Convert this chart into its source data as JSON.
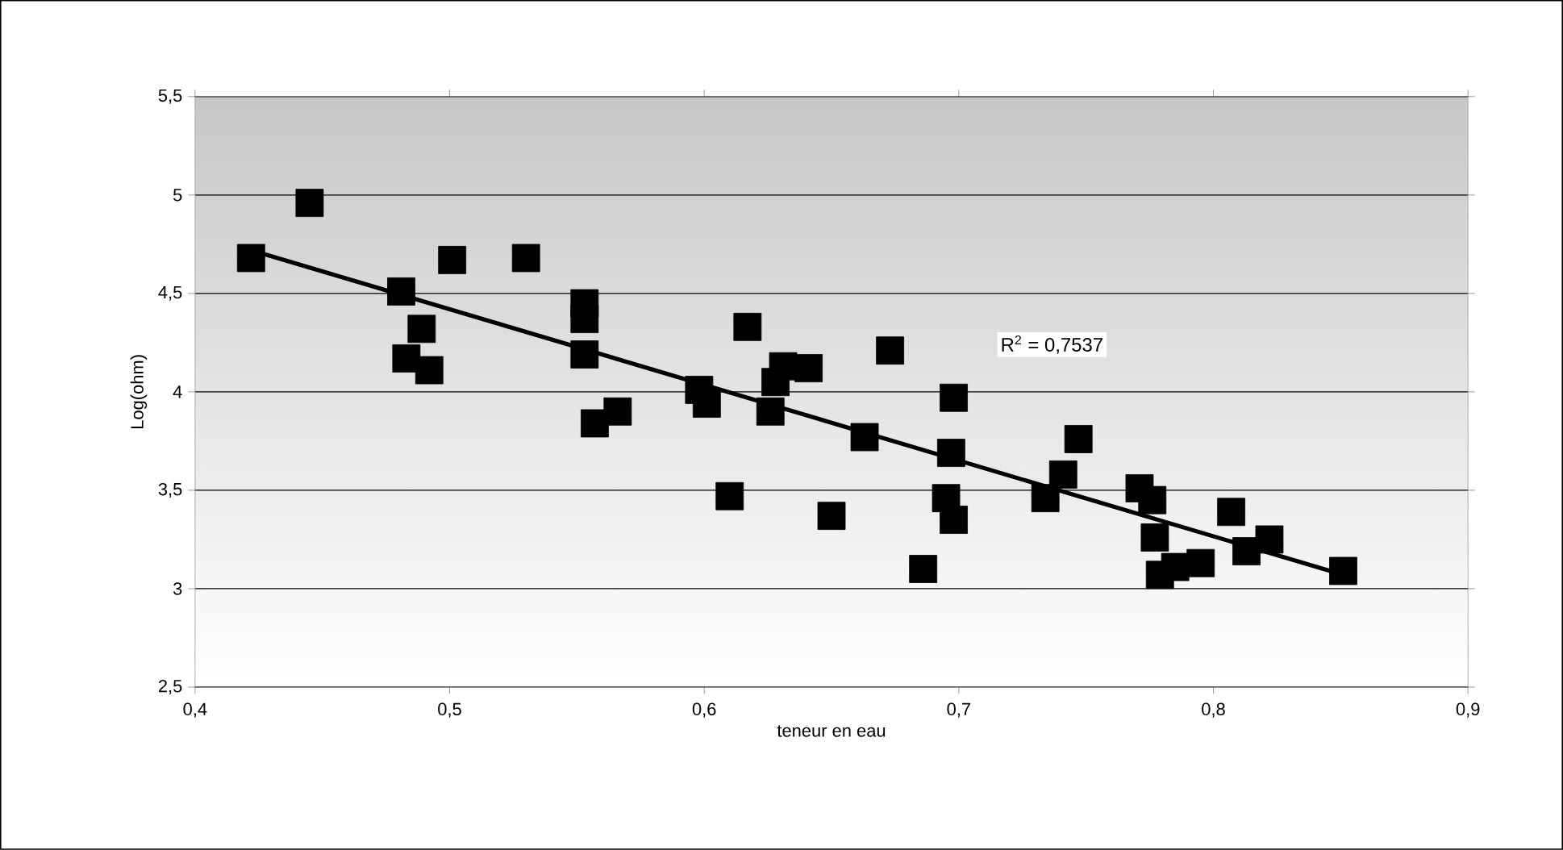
{
  "chart_data": {
    "type": "scatter",
    "xlabel": "teneur en eau",
    "ylabel": "Log(ohm)",
    "xlim": [
      0.4,
      0.9
    ],
    "ylim": [
      2.5,
      5.5
    ],
    "xticks": [
      {
        "value": 0.4,
        "label": "0,4"
      },
      {
        "value": 0.5,
        "label": "0,5"
      },
      {
        "value": 0.6,
        "label": "0,6"
      },
      {
        "value": 0.7,
        "label": "0,7"
      },
      {
        "value": 0.8,
        "label": "0,8"
      },
      {
        "value": 0.9,
        "label": "0,9"
      }
    ],
    "yticks": [
      {
        "value": 2.5,
        "label": "2,5"
      },
      3,
      {
        "value": 3.5,
        "label": "3,5"
      },
      4,
      {
        "value": 4.5,
        "label": "4,5"
      },
      5,
      {
        "value": 5.5,
        "label": "5,5"
      }
    ],
    "grid": "y",
    "annotations": [
      "R$^{2}$ = 0,7537"
    ],
    "series": [
      {
        "color": "#000000",
        "marker": "square",
        "x": [
          0.422,
          0.445,
          0.481,
          0.483,
          0.489,
          0.492,
          0.501,
          0.53,
          0.553,
          0.553,
          0.553,
          0.557,
          0.566,
          0.598,
          0.601,
          0.61,
          0.617,
          0.626,
          0.628,
          0.631,
          0.641,
          0.65,
          0.663,
          0.673,
          0.686,
          0.695,
          0.697,
          0.698,
          0.698,
          0.734,
          0.741,
          0.747,
          0.771,
          0.776,
          0.777,
          0.779,
          0.785,
          0.795,
          0.807,
          0.813,
          0.822,
          0.851
        ],
        "values": [
          4.68,
          4.96,
          4.51,
          4.17,
          4.32,
          4.11,
          4.67,
          4.68,
          4.45,
          4.37,
          4.19,
          3.84,
          3.9,
          4.01,
          3.94,
          3.47,
          4.33,
          3.9,
          4.05,
          4.13,
          4.12,
          3.37,
          3.77,
          4.21,
          3.1,
          3.46,
          3.69,
          3.97,
          3.35,
          3.46,
          3.58,
          3.76,
          3.51,
          3.45,
          3.26,
          3.07,
          3.11,
          3.13,
          3.39,
          3.19,
          3.25,
          3.09
        ]
      },
      {
        "type": "line",
        "color": "#000000",
        "marker": "none",
        "line_style": "solid",
        "x": [
          0.422,
          0.851
        ],
        "values": [
          4.72,
          3.07
        ]
      }
    ]
  }
}
